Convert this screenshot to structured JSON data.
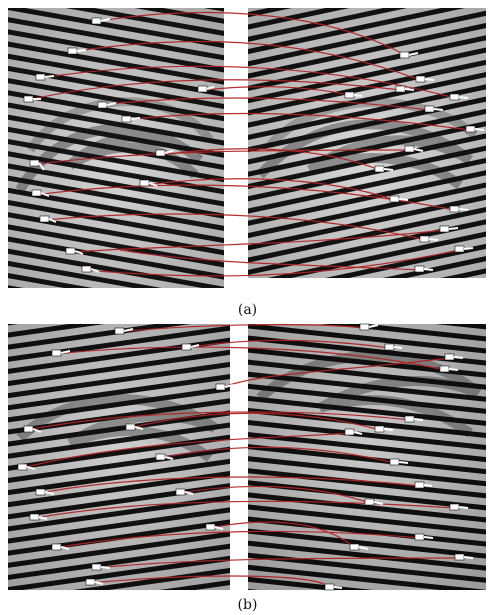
{
  "captions": {
    "a": "(a)",
    "b": "(b)"
  },
  "colors": {
    "match_line": "#b22222",
    "minutia_marker": "#ffffff",
    "ridge_dark": "#151515",
    "paper_light": "#d9d9d9"
  }
}
